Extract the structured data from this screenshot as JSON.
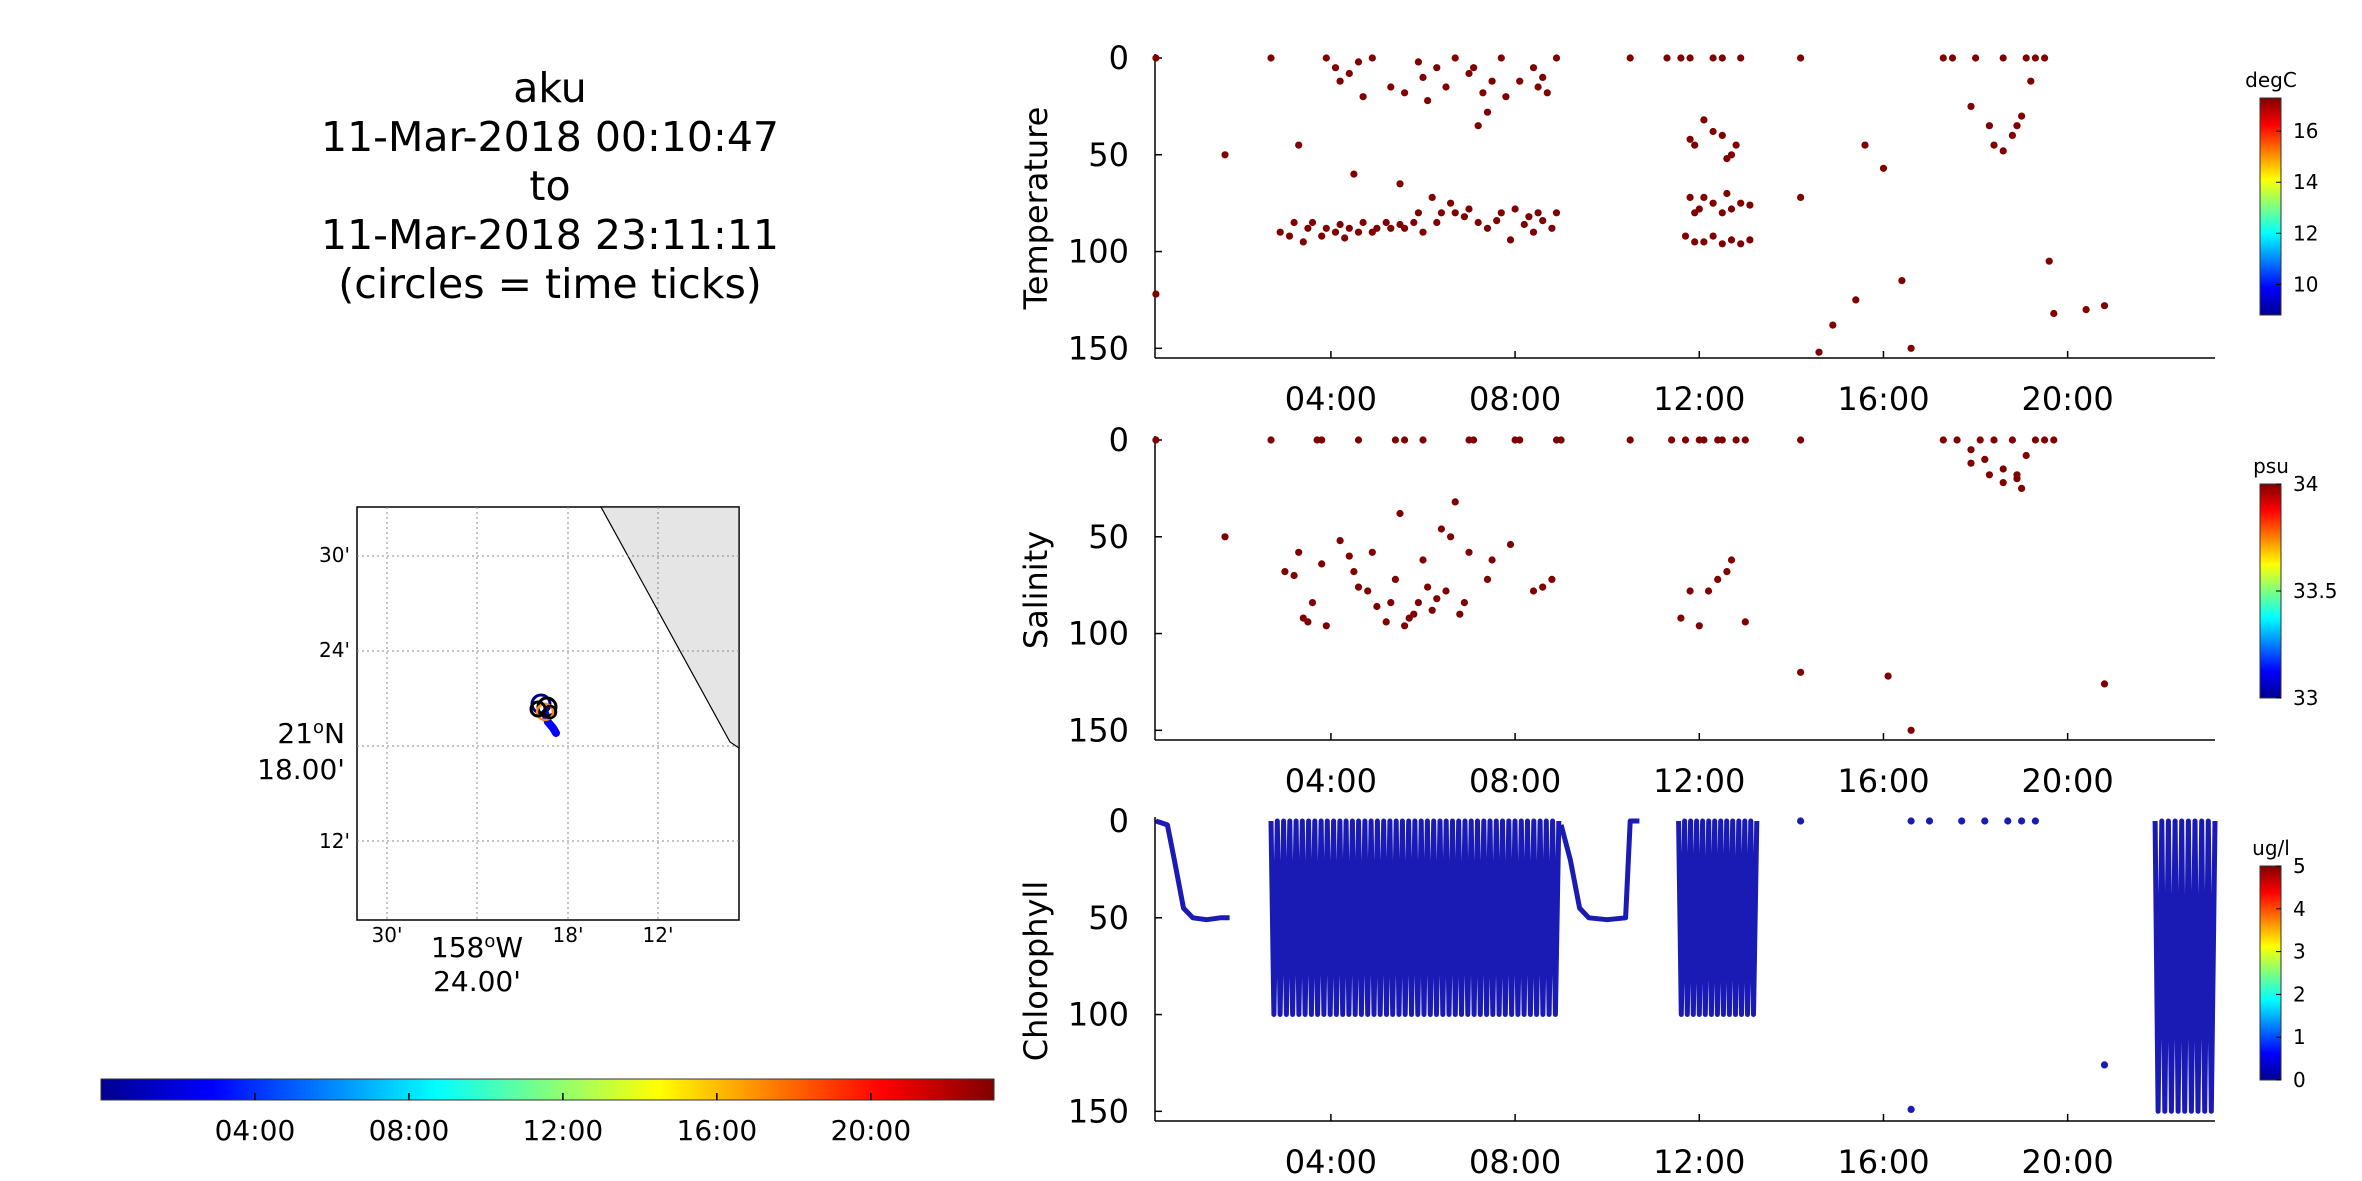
{
  "figure": {
    "title_lines": [
      "aku",
      "11-Mar-2018 00:10:47",
      "to",
      "11-Mar-2018 23:11:11",
      "(circles = time ticks)"
    ]
  },
  "map": {
    "lat_ticks": [
      "30'",
      "24'",
      "21ᴼN",
      "18.00'",
      "12'"
    ],
    "lat_label_main": "21",
    "lat_label_unit": "N",
    "lat_label_sub": "18.00'",
    "lon_ticks": [
      "30'",
      "18'",
      "12'"
    ],
    "lon_label_main": "158",
    "lon_label_unit": "W",
    "lon_label_sub": "24.00'",
    "land_color": "#e5e5e5",
    "grid_style": "dotted",
    "track_colors": [
      "#000080",
      "#0000ff",
      "#ff8c00"
    ]
  },
  "time_colorbar": {
    "ticks": [
      "04:00",
      "08:00",
      "12:00",
      "16:00",
      "20:00"
    ],
    "colormap": "jet"
  },
  "chart_data": [
    {
      "type": "scatter",
      "ylabel": "Temperature",
      "x_unit": "hours",
      "xlim": [
        0.18,
        23.2
      ],
      "ylim": [
        155,
        0
      ],
      "y_reversed": true,
      "xticks": [
        "04:00",
        "08:00",
        "12:00",
        "16:00",
        "20:00"
      ],
      "yticks": [
        "0",
        "50",
        "100",
        "150"
      ],
      "colorbar": {
        "unit": "degC",
        "ticks": [
          "16",
          "14",
          "12",
          "10"
        ],
        "range": [
          8.8,
          17.3
        ]
      },
      "point_color": "#800000",
      "points": [
        [
          0.2,
          0
        ],
        [
          0.2,
          122
        ],
        [
          1.7,
          50
        ],
        [
          2.7,
          0
        ],
        [
          3.3,
          45
        ],
        [
          2.9,
          90
        ],
        [
          3.1,
          92
        ],
        [
          3.2,
          85
        ],
        [
          3.4,
          95
        ],
        [
          3.5,
          88
        ],
        [
          3.6,
          85
        ],
        [
          3.8,
          92
        ],
        [
          3.9,
          88
        ],
        [
          4.1,
          90
        ],
        [
          4.2,
          86
        ],
        [
          4.3,
          93
        ],
        [
          4.4,
          88
        ],
        [
          4.6,
          90
        ],
        [
          4.7,
          85
        ],
        [
          4.9,
          90
        ],
        [
          5.0,
          88
        ],
        [
          5.2,
          85
        ],
        [
          5.3,
          88
        ],
        [
          5.5,
          86
        ],
        [
          5.6,
          88
        ],
        [
          5.8,
          85
        ],
        [
          5.9,
          80
        ],
        [
          6.0,
          90
        ],
        [
          6.2,
          72
        ],
        [
          6.3,
          85
        ],
        [
          6.4,
          80
        ],
        [
          6.6,
          75
        ],
        [
          6.7,
          80
        ],
        [
          6.9,
          82
        ],
        [
          7.0,
          78
        ],
        [
          7.2,
          85
        ],
        [
          7.4,
          88
        ],
        [
          7.6,
          84
        ],
        [
          7.7,
          80
        ],
        [
          7.9,
          94
        ],
        [
          8.0,
          78
        ],
        [
          8.2,
          86
        ],
        [
          8.3,
          82
        ],
        [
          8.4,
          90
        ],
        [
          8.5,
          80
        ],
        [
          8.6,
          84
        ],
        [
          8.8,
          88
        ],
        [
          8.9,
          80
        ],
        [
          3.9,
          0
        ],
        [
          4.1,
          5
        ],
        [
          4.2,
          12
        ],
        [
          4.4,
          8
        ],
        [
          4.6,
          2
        ],
        [
          4.7,
          20
        ],
        [
          4.9,
          0
        ],
        [
          5.3,
          15
        ],
        [
          5.6,
          18
        ],
        [
          5.9,
          2
        ],
        [
          6.0,
          10
        ],
        [
          6.1,
          22
        ],
        [
          6.3,
          5
        ],
        [
          6.5,
          15
        ],
        [
          6.7,
          0
        ],
        [
          7.0,
          8
        ],
        [
          7.1,
          5
        ],
        [
          7.3,
          18
        ],
        [
          7.5,
          12
        ],
        [
          7.7,
          0
        ],
        [
          7.8,
          20
        ],
        [
          8.1,
          12
        ],
        [
          8.4,
          5
        ],
        [
          8.5,
          15
        ],
        [
          8.6,
          10
        ],
        [
          8.7,
          18
        ],
        [
          8.9,
          0
        ],
        [
          4.5,
          60
        ],
        [
          5.5,
          65
        ],
        [
          7.2,
          35
        ],
        [
          7.4,
          28
        ],
        [
          10.5,
          0
        ],
        [
          11.3,
          0
        ],
        [
          11.6,
          0
        ],
        [
          11.8,
          0
        ],
        [
          12.3,
          0
        ],
        [
          12.5,
          0
        ],
        [
          12.9,
          0
        ],
        [
          14.2,
          0
        ],
        [
          11.8,
          42
        ],
        [
          11.9,
          45
        ],
        [
          12.1,
          32
        ],
        [
          12.3,
          38
        ],
        [
          12.5,
          40
        ],
        [
          12.6,
          52
        ],
        [
          12.7,
          50
        ],
        [
          12.8,
          45
        ],
        [
          11.8,
          72
        ],
        [
          11.9,
          80
        ],
        [
          12.0,
          78
        ],
        [
          12.1,
          72
        ],
        [
          12.3,
          75
        ],
        [
          12.5,
          80
        ],
        [
          12.6,
          70
        ],
        [
          12.7,
          78
        ],
        [
          12.9,
          75
        ],
        [
          13.1,
          76
        ],
        [
          11.7,
          92
        ],
        [
          11.9,
          95
        ],
        [
          12.1,
          95
        ],
        [
          12.3,
          92
        ],
        [
          12.5,
          96
        ],
        [
          12.7,
          94
        ],
        [
          12.9,
          96
        ],
        [
          13.1,
          94
        ],
        [
          14.2,
          72
        ],
        [
          14.6,
          152
        ],
        [
          14.9,
          138
        ],
        [
          15.4,
          125
        ],
        [
          15.6,
          45
        ],
        [
          16.0,
          57
        ],
        [
          16.4,
          115
        ],
        [
          16.6,
          150
        ],
        [
          17.3,
          0
        ],
        [
          17.5,
          0
        ],
        [
          18.0,
          0
        ],
        [
          18.6,
          0
        ],
        [
          19.1,
          0
        ],
        [
          19.3,
          0
        ],
        [
          19.5,
          0
        ],
        [
          17.9,
          25
        ],
        [
          18.3,
          35
        ],
        [
          18.4,
          45
        ],
        [
          18.6,
          48
        ],
        [
          18.8,
          40
        ],
        [
          18.9,
          35
        ],
        [
          19.0,
          30
        ],
        [
          19.2,
          12
        ],
        [
          19.6,
          105
        ],
        [
          19.7,
          132
        ],
        [
          20.4,
          130
        ],
        [
          20.8,
          128
        ]
      ]
    },
    {
      "type": "scatter",
      "ylabel": "Salinity",
      "x_unit": "hours",
      "xlim": [
        0.18,
        23.2
      ],
      "ylim": [
        155,
        0
      ],
      "y_reversed": true,
      "xticks": [
        "04:00",
        "08:00",
        "12:00",
        "16:00",
        "20:00"
      ],
      "yticks": [
        "0",
        "50",
        "100",
        "150"
      ],
      "colorbar": {
        "unit": "psu",
        "ticks": [
          "34",
          "33.5",
          "33"
        ],
        "range": [
          33,
          34
        ]
      },
      "point_color": "#800000",
      "points": [
        [
          0.2,
          0
        ],
        [
          1.7,
          50
        ],
        [
          2.7,
          0
        ],
        [
          3.7,
          0
        ],
        [
          3.8,
          0
        ],
        [
          4.6,
          0
        ],
        [
          5.4,
          0
        ],
        [
          5.6,
          0
        ],
        [
          6.0,
          0
        ],
        [
          7.0,
          0
        ],
        [
          7.1,
          0
        ],
        [
          8.0,
          0
        ],
        [
          8.1,
          0
        ],
        [
          8.9,
          0
        ],
        [
          9.0,
          0
        ],
        [
          3.0,
          68
        ],
        [
          3.2,
          70
        ],
        [
          3.3,
          58
        ],
        [
          3.4,
          92
        ],
        [
          3.5,
          94
        ],
        [
          3.6,
          84
        ],
        [
          3.8,
          64
        ],
        [
          3.9,
          96
        ],
        [
          4.2,
          52
        ],
        [
          4.4,
          60
        ],
        [
          4.5,
          68
        ],
        [
          4.6,
          76
        ],
        [
          4.8,
          78
        ],
        [
          4.9,
          58
        ],
        [
          5.0,
          86
        ],
        [
          5.2,
          94
        ],
        [
          5.3,
          84
        ],
        [
          5.4,
          72
        ],
        [
          5.5,
          38
        ],
        [
          5.6,
          96
        ],
        [
          5.7,
          92
        ],
        [
          5.8,
          90
        ],
        [
          5.9,
          84
        ],
        [
          6.0,
          62
        ],
        [
          6.1,
          76
        ],
        [
          6.2,
          88
        ],
        [
          6.3,
          82
        ],
        [
          6.4,
          46
        ],
        [
          6.5,
          78
        ],
        [
          6.6,
          50
        ],
        [
          6.7,
          32
        ],
        [
          6.8,
          90
        ],
        [
          6.9,
          84
        ],
        [
          7.0,
          58
        ],
        [
          7.4,
          72
        ],
        [
          7.5,
          62
        ],
        [
          7.9,
          54
        ],
        [
          8.4,
          78
        ],
        [
          8.6,
          76
        ],
        [
          8.8,
          72
        ],
        [
          10.5,
          0
        ],
        [
          11.4,
          0
        ],
        [
          11.7,
          0
        ],
        [
          12.0,
          0
        ],
        [
          12.1,
          0
        ],
        [
          12.4,
          0
        ],
        [
          12.5,
          0
        ],
        [
          12.8,
          0
        ],
        [
          13.0,
          0
        ],
        [
          14.2,
          0
        ],
        [
          11.6,
          92
        ],
        [
          11.8,
          78
        ],
        [
          12.0,
          96
        ],
        [
          12.2,
          78
        ],
        [
          12.4,
          72
        ],
        [
          12.6,
          68
        ],
        [
          12.7,
          62
        ],
        [
          13.0,
          94
        ],
        [
          14.2,
          120
        ],
        [
          16.1,
          122
        ],
        [
          16.6,
          150
        ],
        [
          17.3,
          0
        ],
        [
          17.6,
          0
        ],
        [
          17.9,
          5
        ],
        [
          18.1,
          0
        ],
        [
          18.2,
          10
        ],
        [
          18.3,
          18
        ],
        [
          18.4,
          0
        ],
        [
          18.6,
          15
        ],
        [
          18.8,
          0
        ],
        [
          18.9,
          20
        ],
        [
          19.0,
          25
        ],
        [
          19.1,
          8
        ],
        [
          19.3,
          0
        ],
        [
          19.5,
          0
        ],
        [
          17.9,
          12
        ],
        [
          18.6,
          22
        ],
        [
          18.9,
          18
        ],
        [
          19.7,
          0
        ],
        [
          20.8,
          126
        ]
      ]
    },
    {
      "type": "line",
      "ylabel": "Chlorophyll",
      "x_unit": "hours",
      "xlim": [
        0.18,
        23.2
      ],
      "ylim": [
        155,
        0
      ],
      "y_reversed": true,
      "xticks": [
        "04:00",
        "08:00",
        "12:00",
        "16:00",
        "20:00"
      ],
      "yticks": [
        "0",
        "50",
        "100",
        "150"
      ],
      "colorbar": {
        "unit": "ug/l",
        "ticks": [
          "5",
          "4",
          "3",
          "2",
          "1",
          "0"
        ],
        "range": [
          0,
          5
        ]
      },
      "point_color": "#1a1ab4",
      "profiles": [
        {
          "start": 2.7,
          "end": 8.95,
          "min_depth": 0,
          "max_depth": 100,
          "cycles": 46
        },
        {
          "start": 11.55,
          "end": 13.25,
          "min_depth": 0,
          "max_depth": 100,
          "cycles": 13
        },
        {
          "start": 21.9,
          "end": 23.2,
          "min_depth": 0,
          "max_depth": 150,
          "cycles": 9
        }
      ],
      "segments": [
        [
          [
            0.2,
            0
          ],
          [
            0.45,
            2
          ],
          [
            0.6,
            20
          ],
          [
            0.8,
            45
          ],
          [
            1.0,
            50
          ],
          [
            1.3,
            51
          ],
          [
            1.6,
            50
          ],
          [
            1.8,
            50
          ]
        ],
        [
          [
            9.0,
            2
          ],
          [
            9.2,
            20
          ],
          [
            9.4,
            45
          ],
          [
            9.6,
            50
          ],
          [
            10.0,
            51
          ],
          [
            10.4,
            50
          ],
          [
            10.5,
            0
          ],
          [
            10.7,
            0
          ]
        ]
      ],
      "points": [
        [
          14.2,
          0
        ],
        [
          16.6,
          0
        ],
        [
          17.0,
          0
        ],
        [
          17.7,
          0
        ],
        [
          18.2,
          0
        ],
        [
          18.7,
          0
        ],
        [
          19.0,
          0
        ],
        [
          19.3,
          0
        ],
        [
          16.6,
          149
        ],
        [
          20.8,
          126
        ]
      ]
    }
  ]
}
